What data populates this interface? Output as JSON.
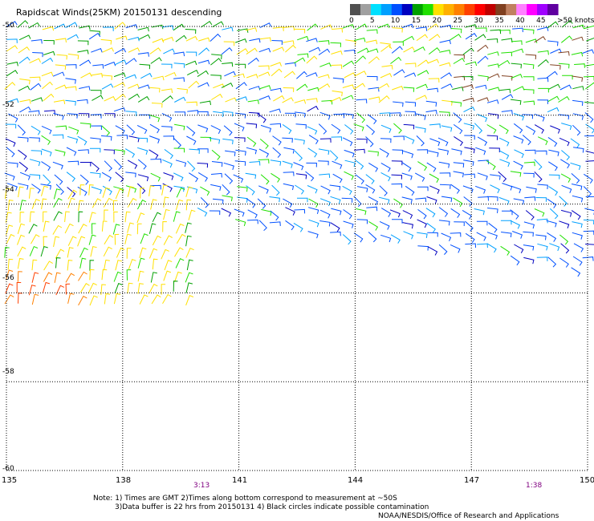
{
  "title": "Rapidscat Winds(25KM) 20150131 descending",
  "colorbar": {
    "labels": [
      "0",
      "5",
      "10",
      "15",
      "20",
      "25",
      "30",
      "35",
      "40",
      "45",
      ">50 knots"
    ],
    "colors": [
      "#505050",
      "#a0a0a0",
      "#00e0ff",
      "#00a0ff",
      "#0050ff",
      "#0000c0",
      "#00a000",
      "#20e000",
      "#ffe000",
      "#ffb000",
      "#ff8000",
      "#ff4000",
      "#ff0000",
      "#c00000",
      "#804020",
      "#c08060",
      "#ff80ff",
      "#ff00ff",
      "#a000ff",
      "#6000a0"
    ]
  },
  "axes": {
    "lat_labels": [
      "-50",
      "-52",
      "-54",
      "-56",
      "-58",
      "-60"
    ],
    "lon_labels": [
      "135",
      "138",
      "141",
      "144",
      "147",
      "150"
    ]
  },
  "times": [
    "3:13",
    "1:38"
  ],
  "notes": {
    "line1": "Note: 1) Times are GMT 2)Times along bottom correspond to measurement at ~50S",
    "line2": "3)Data buffer is 22 hrs from 20150131 4) Black circles indicate possible contamination",
    "credit": "NOAA/NESDIS/Office of Research and Applications"
  }
}
